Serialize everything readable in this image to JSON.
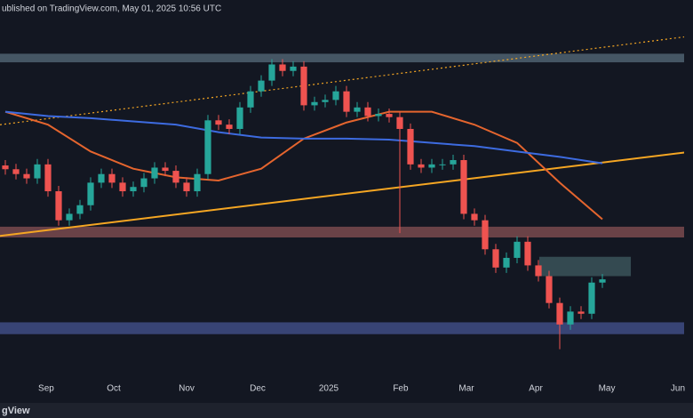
{
  "header": {
    "text": "ublished on TradingView.com, May 01, 2025 10:56 UTC"
  },
  "footer": {
    "text": "gView"
  },
  "chart_data": {
    "type": "candlestick",
    "up_color": "#26a69a",
    "down_color": "#ef5350",
    "categories": [
      null,
      null,
      null,
      null,
      null,
      null,
      null,
      null,
      null,
      null,
      null,
      null,
      null,
      null,
      null,
      null,
      null,
      null,
      null,
      null,
      null,
      null,
      null,
      null,
      null,
      null,
      null,
      null,
      null,
      null,
      null,
      null,
      null,
      null,
      null,
      null,
      null,
      null,
      null,
      null,
      null,
      null,
      null,
      null,
      null,
      null,
      null,
      null,
      null,
      null,
      null,
      null,
      null,
      null,
      null,
      null,
      null
    ],
    "open": [
      3100,
      3065,
      3020,
      2980,
      3110,
      2860,
      2590,
      2650,
      2730,
      2940,
      3020,
      2940,
      2860,
      2900,
      2980,
      3080,
      3050,
      2940,
      2860,
      3020,
      3520,
      3480,
      3440,
      3640,
      3790,
      3890,
      4040,
      3980,
      4020,
      3660,
      3690,
      3710,
      3790,
      3600,
      3640,
      3560,
      3580,
      3550,
      3440,
      3110,
      3080,
      3110,
      3110,
      3150,
      2650,
      2590,
      2320,
      2150,
      2240,
      2390,
      2170,
      2070,
      1820,
      1620,
      1740,
      1720,
      2010
    ],
    "high": [
      3150,
      3115,
      3070,
      3160,
      3160,
      2910,
      2700,
      2780,
      2990,
      3070,
      3070,
      2990,
      2950,
      3030,
      3130,
      3130,
      3100,
      2990,
      3070,
      3570,
      3570,
      3530,
      3690,
      3840,
      3940,
      4090,
      4090,
      4070,
      4070,
      3740,
      3760,
      3840,
      3840,
      3690,
      3690,
      3630,
      3630,
      3600,
      3490,
      3160,
      3160,
      3160,
      3200,
      3200,
      2700,
      2640,
      2370,
      2290,
      2440,
      2440,
      2220,
      2120,
      1870,
      1790,
      1790,
      2060,
      2090
    ],
    "low": [
      3015,
      2970,
      2930,
      2930,
      2810,
      2540,
      2540,
      2600,
      2680,
      2890,
      2890,
      2810,
      2810,
      2850,
      2930,
      3000,
      2890,
      2810,
      2810,
      2970,
      3430,
      3390,
      3390,
      3590,
      3740,
      3840,
      3930,
      3930,
      3610,
      3610,
      3640,
      3660,
      3550,
      3550,
      3510,
      3510,
      3500,
      2470,
      3060,
      3030,
      3030,
      3060,
      3060,
      2600,
      2540,
      2270,
      2100,
      2100,
      2190,
      2120,
      2020,
      1770,
      1390,
      1570,
      1670,
      1670,
      1960
    ],
    "close": [
      3065,
      3020,
      2980,
      3110,
      2860,
      2590,
      2650,
      2730,
      2940,
      3020,
      2940,
      2860,
      2900,
      2980,
      3080,
      3050,
      2940,
      2860,
      3020,
      3520,
      3480,
      3440,
      3640,
      3790,
      3890,
      4040,
      3980,
      4020,
      3660,
      3690,
      3710,
      3790,
      3600,
      3640,
      3560,
      3580,
      3550,
      3440,
      3110,
      3080,
      3110,
      3110,
      3150,
      2650,
      2590,
      2320,
      2150,
      2240,
      2390,
      2170,
      2070,
      1820,
      1620,
      1740,
      1720,
      2010,
      2040
    ],
    "xlim": [
      -0.5,
      64.5
    ],
    "ylim": [
      940,
      4640
    ],
    "xticks": [
      {
        "value": 3.83,
        "label": "Sep"
      },
      {
        "value": 10.17,
        "label": "Oct"
      },
      {
        "value": 17,
        "label": "Nov"
      },
      {
        "value": 23.67,
        "label": "Dec"
      },
      {
        "value": 30.33,
        "label": "2025"
      },
      {
        "value": 37.08,
        "label": "Feb"
      },
      {
        "value": 43.25,
        "label": "Mar"
      },
      {
        "value": 49.75,
        "label": "Apr"
      },
      {
        "value": 56.42,
        "label": "May"
      },
      {
        "value": 63.08,
        "label": "Jun"
      }
    ],
    "zones": [
      {
        "color": "#4f6270",
        "ylim": [
          4060,
          4140
        ],
        "xlim": [
          -0.5,
          64.5
        ]
      },
      {
        "color": "#7a4a4e",
        "ylim": [
          2430,
          2530
        ],
        "xlim": [
          -0.5,
          64.5
        ]
      },
      {
        "color": "#3f4c84",
        "ylim": [
          1530,
          1640
        ],
        "xlim": [
          -0.5,
          64.5
        ]
      },
      {
        "color": "#3b5359",
        "ylim": [
          2070,
          2250
        ],
        "xlim": [
          50.08,
          58.67
        ]
      }
    ],
    "lines": [
      {
        "color": "#e5652e",
        "x": [
          0,
          4,
          8,
          12,
          16,
          20,
          24,
          28,
          32,
          36,
          40,
          44,
          48,
          52,
          56
        ],
        "values": [
          3600,
          3480,
          3230,
          3070,
          2990,
          2960,
          3070,
          3350,
          3500,
          3600,
          3600,
          3480,
          3310,
          2940,
          2600
        ]
      },
      {
        "color": "#3d6be0",
        "x": [
          0,
          4,
          8,
          12,
          16,
          20,
          24,
          28,
          32,
          36,
          40,
          44,
          48,
          52,
          56
        ],
        "values": [
          3600,
          3560,
          3540,
          3510,
          3480,
          3410,
          3360,
          3350,
          3350,
          3340,
          3310,
          3280,
          3230,
          3180,
          3120
        ]
      }
    ],
    "trendlines": [
      {
        "color": "#f5a623",
        "dash": false,
        "x": [
          -0.5,
          64.5
        ],
        "values": [
          2444,
          3230
        ]
      },
      {
        "color": "#f5a623",
        "dash": true,
        "x": [
          -0.5,
          64.5
        ],
        "values": [
          3479,
          4307
        ]
      }
    ]
  }
}
